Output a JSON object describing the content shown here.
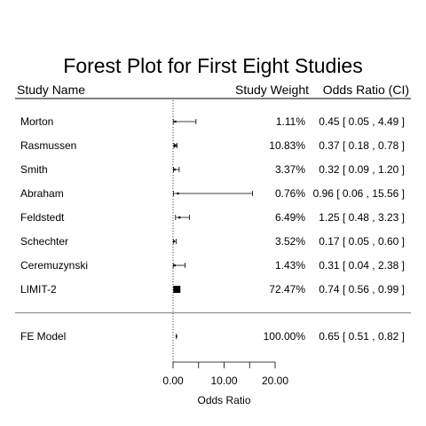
{
  "chart_data": {
    "type": "forest",
    "title": "Forest Plot for First Eight Studies",
    "columns": {
      "study": "Study Name",
      "weight": "Study Weight",
      "estimate": "Odds Ratio (CI)"
    },
    "studies": [
      {
        "name": "Morton",
        "weight": "1.11%",
        "ci_text": "0.45 [ 0.05 ,  4.49 ]",
        "or": 0.45,
        "lower": 0.05,
        "upper": 4.49,
        "weight_value": 1.11
      },
      {
        "name": "Rasmussen",
        "weight": "10.83%",
        "ci_text": "0.37 [ 0.18 ,  0.78 ]",
        "or": 0.37,
        "lower": 0.18,
        "upper": 0.78,
        "weight_value": 10.83
      },
      {
        "name": "Smith",
        "weight": "3.37%",
        "ci_text": "0.32 [ 0.09 ,  1.20 ]",
        "or": 0.32,
        "lower": 0.09,
        "upper": 1.2,
        "weight_value": 3.37
      },
      {
        "name": "Abraham",
        "weight": "0.76%",
        "ci_text": "0.96 [ 0.06 , 15.56 ]",
        "or": 0.96,
        "lower": 0.06,
        "upper": 15.56,
        "weight_value": 0.76
      },
      {
        "name": "Feldstedt",
        "weight": "6.49%",
        "ci_text": "1.25 [ 0.48 ,  3.23 ]",
        "or": 1.25,
        "lower": 0.48,
        "upper": 3.23,
        "weight_value": 6.49
      },
      {
        "name": "Schechter",
        "weight": "3.52%",
        "ci_text": "0.17 [ 0.05 ,  0.60 ]",
        "or": 0.17,
        "lower": 0.05,
        "upper": 0.6,
        "weight_value": 3.52
      },
      {
        "name": "Ceremuzynski",
        "weight": "1.43%",
        "ci_text": "0.31 [ 0.04 ,  2.38 ]",
        "or": 0.31,
        "lower": 0.04,
        "upper": 2.38,
        "weight_value": 1.43
      },
      {
        "name": "LIMIT-2",
        "weight": "72.47%",
        "ci_text": "0.74 [ 0.56 ,  0.99 ]",
        "or": 0.74,
        "lower": 0.56,
        "upper": 0.99,
        "weight_value": 72.47
      }
    ],
    "summary": {
      "name": "FE Model",
      "weight": "100.00%",
      "ci_text": "0.65 [ 0.51 ,  0.82 ]",
      "or": 0.65,
      "lower": 0.51,
      "upper": 0.82
    },
    "xlabel": "Odds Ratio",
    "xlim": [
      0,
      20
    ],
    "xticks": [
      0,
      5,
      10,
      15,
      20
    ],
    "xtick_labels": [
      "0.00",
      "10.00",
      "20.00"
    ],
    "xtick_label_values": [
      0,
      10,
      20
    ],
    "reference_line": 0,
    "grid": false,
    "colors": {
      "line": "#000000",
      "separator": "#808080",
      "text": "#000000"
    }
  }
}
